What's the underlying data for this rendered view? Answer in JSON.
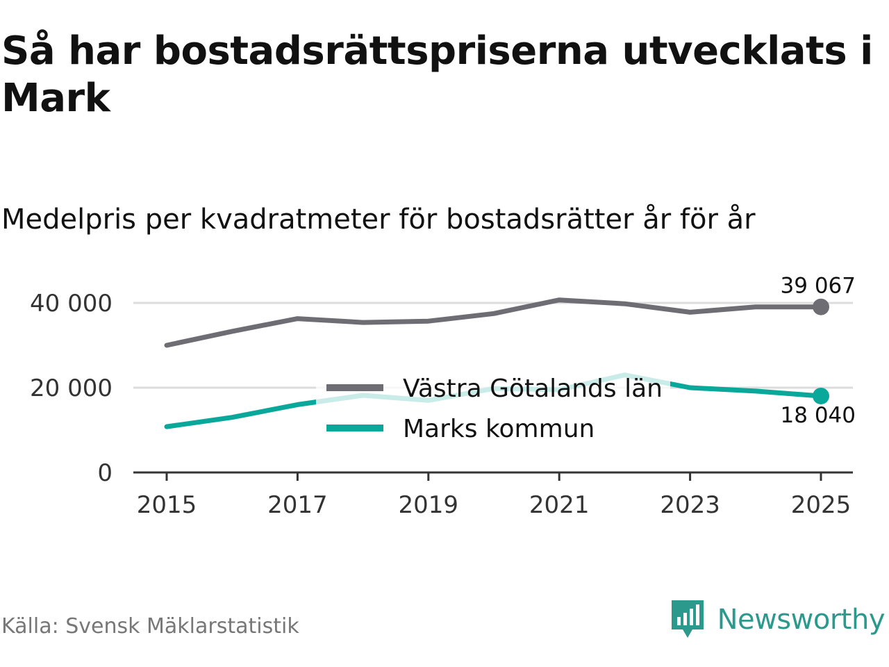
{
  "header": {
    "title": "Så har bostadsrättspriserna utvecklats i Mark",
    "subtitle": "Medelpris per kvadratmeter för bostadsrätter år för år"
  },
  "chart_data": {
    "type": "line",
    "x": [
      2015,
      2016,
      2017,
      2018,
      2019,
      2020,
      2021,
      2022,
      2023,
      2024,
      2025
    ],
    "series": [
      {
        "name": "Västra Götalands län",
        "color": "#6e6d73",
        "values": [
          30000,
          33300,
          36300,
          35400,
          35700,
          37500,
          40700,
          39800,
          37800,
          39067,
          39067
        ],
        "end_label": "39 067"
      },
      {
        "name": "Marks kommun",
        "color": "#0aa89b",
        "values": [
          10800,
          13000,
          16000,
          18200,
          17000,
          19800,
          19500,
          23000,
          20000,
          19200,
          18040
        ],
        "end_label": "18 040"
      }
    ],
    "xticks": [
      "2015",
      "2017",
      "2019",
      "2021",
      "2023",
      "2025"
    ],
    "yticks": [
      "0",
      "20 000",
      "40 000"
    ],
    "ytick_values": [
      0,
      20000,
      40000
    ],
    "ylim": [
      0,
      40000
    ],
    "xlim": [
      2015,
      2025
    ],
    "legend": [
      "Västra Götalands län",
      "Marks kommun"
    ],
    "legend_position": "center",
    "grid": true
  },
  "footer": {
    "source": "Källa: Svensk Mäklarstatistik",
    "brand": "Newsworthy",
    "brand_color": "#2b9a8d",
    "logo_icon": "newsworthy-logo-icon"
  }
}
